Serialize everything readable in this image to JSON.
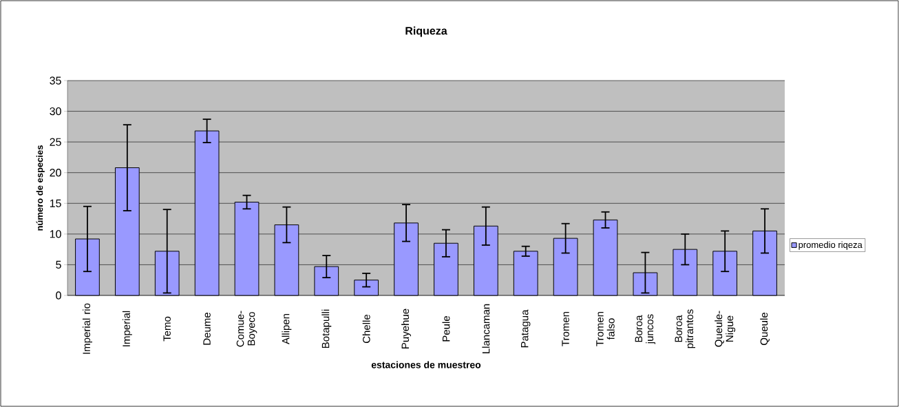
{
  "chart_data": {
    "type": "bar",
    "title": "Riqueza",
    "xlabel": "estaciones de muestreo",
    "ylabel": "número de especies",
    "categories": [
      "Imperial rio",
      "Imperial",
      "Temo",
      "Deume",
      "Comue-Boyeco",
      "Allipen",
      "Botapulli",
      "Chelle",
      "Puyehue",
      "Peule",
      "Llancaman",
      "Patagua",
      "Tromen",
      "Tromen falso",
      "Boroa juncos",
      "Boroa pitrantos",
      "Queule-Nigue",
      "Queule"
    ],
    "series": [
      {
        "name": "promedio riqeza",
        "color": "#9999ff",
        "values": [
          9.2,
          20.8,
          7.2,
          26.8,
          15.2,
          11.5,
          4.7,
          2.5,
          11.8,
          8.5,
          11.3,
          7.2,
          9.3,
          12.3,
          3.7,
          7.5,
          7.2,
          10.5
        ],
        "errors": [
          5.3,
          7.0,
          6.8,
          1.9,
          1.1,
          2.9,
          1.8,
          1.1,
          3.0,
          2.2,
          3.1,
          0.8,
          2.4,
          1.3,
          3.3,
          2.5,
          3.3,
          3.6
        ]
      }
    ],
    "ylim": [
      0,
      35
    ],
    "yticks": [
      0,
      5,
      10,
      15,
      20,
      25,
      30,
      35
    ],
    "grid": "y",
    "legend": "right"
  }
}
